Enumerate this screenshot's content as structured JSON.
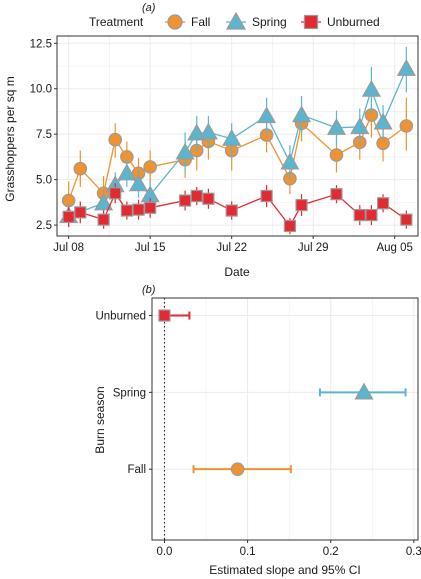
{
  "colors": {
    "fall": "#f0922f",
    "spring": "#5ab6cf",
    "unburned": "#e32a32",
    "marker_edge": "#9a9a9a",
    "grid": "#ebebeb",
    "zero_line": "#222222"
  },
  "legend": {
    "title": "Treatment",
    "items": [
      {
        "label": "Fall",
        "icon": "circle-icon"
      },
      {
        "label": "Spring",
        "icon": "triangle-icon"
      },
      {
        "label": "Unburned",
        "icon": "square-icon"
      }
    ]
  },
  "chart_data": [
    {
      "panel_label": "(a)",
      "type": "line",
      "xlabel": "Date",
      "ylabel": "Grasshoppers per sq m",
      "x_ticks": [
        "Jul 08",
        "Jul 15",
        "Jul 22",
        "Jul 29",
        "Aug 05"
      ],
      "y_ticks": [
        "2.5",
        "5.0",
        "7.5",
        "10.0",
        "12.5"
      ],
      "xlim": [
        "2023-07-07",
        "2023-08-07"
      ],
      "ylim": [
        1.9,
        12.9
      ],
      "grid": true,
      "legend_position": "top",
      "series": [
        {
          "name": "Fall",
          "marker": "circle",
          "points": [
            {
              "x": "2023-07-08",
              "y": 3.85,
              "lo": 2.9,
              "hi": 4.9
            },
            {
              "x": "2023-07-09",
              "y": 5.6,
              "lo": 4.6,
              "hi": 6.6
            },
            {
              "x": "2023-07-11",
              "y": 4.25,
              "lo": 3.4,
              "hi": 5.2
            },
            {
              "x": "2023-07-12",
              "y": 7.2,
              "lo": 6.2,
              "hi": 8.1
            },
            {
              "x": "2023-07-13",
              "y": 6.25,
              "lo": 5.4,
              "hi": 7.1
            },
            {
              "x": "2023-07-14",
              "y": 5.35,
              "lo": 4.5,
              "hi": 6.2
            },
            {
              "x": "2023-07-15",
              "y": 5.7,
              "lo": 4.8,
              "hi": 6.6
            },
            {
              "x": "2023-07-18",
              "y": 6.1,
              "lo": 5.1,
              "hi": 7.1
            },
            {
              "x": "2023-07-19",
              "y": 6.6,
              "lo": 5.5,
              "hi": 7.7
            },
            {
              "x": "2023-07-20",
              "y": 7.1,
              "lo": 6.1,
              "hi": 8.1
            },
            {
              "x": "2023-07-22",
              "y": 6.6,
              "lo": 5.5,
              "hi": 7.7
            },
            {
              "x": "2023-07-25",
              "y": 7.45,
              "lo": 6.5,
              "hi": 8.4
            },
            {
              "x": "2023-07-27",
              "y": 5.05,
              "lo": 4.2,
              "hi": 5.9
            },
            {
              "x": "2023-07-28",
              "y": 8.1,
              "lo": 7.1,
              "hi": 9.1
            },
            {
              "x": "2023-07-31",
              "y": 6.35,
              "lo": 5.4,
              "hi": 7.3
            },
            {
              "x": "2023-08-02",
              "y": 7.05,
              "lo": 6.1,
              "hi": 8.0
            },
            {
              "x": "2023-08-03",
              "y": 8.55,
              "lo": 7.3,
              "hi": 9.7
            },
            {
              "x": "2023-08-04",
              "y": 7.0,
              "lo": 6.0,
              "hi": 8.0
            },
            {
              "x": "2023-08-06",
              "y": 7.95,
              "lo": 6.6,
              "hi": 9.5
            }
          ]
        },
        {
          "name": "Spring",
          "marker": "triangle",
          "points": [
            {
              "x": "2023-07-08",
              "y": 3.0,
              "lo": 2.4,
              "hi": 3.7
            },
            {
              "x": "2023-07-11",
              "y": 3.7,
              "lo": 3.0,
              "hi": 4.4
            },
            {
              "x": "2023-07-12",
              "y": 4.7,
              "lo": 3.9,
              "hi": 5.4
            },
            {
              "x": "2023-07-13",
              "y": 5.35,
              "lo": 4.6,
              "hi": 6.1
            },
            {
              "x": "2023-07-14",
              "y": 4.75,
              "lo": 4.0,
              "hi": 5.5
            },
            {
              "x": "2023-07-15",
              "y": 4.15,
              "lo": 3.4,
              "hi": 4.9
            },
            {
              "x": "2023-07-18",
              "y": 6.5,
              "lo": 5.4,
              "hi": 7.6
            },
            {
              "x": "2023-07-19",
              "y": 7.55,
              "lo": 6.5,
              "hi": 8.5
            },
            {
              "x": "2023-07-20",
              "y": 7.6,
              "lo": 6.7,
              "hi": 8.5
            },
            {
              "x": "2023-07-22",
              "y": 7.25,
              "lo": 6.3,
              "hi": 8.1
            },
            {
              "x": "2023-07-25",
              "y": 8.5,
              "lo": 7.4,
              "hi": 9.5
            },
            {
              "x": "2023-07-27",
              "y": 5.95,
              "lo": 5.0,
              "hi": 6.9
            },
            {
              "x": "2023-07-28",
              "y": 8.55,
              "lo": 7.5,
              "hi": 9.6
            },
            {
              "x": "2023-07-31",
              "y": 7.85,
              "lo": 6.9,
              "hi": 8.8
            },
            {
              "x": "2023-08-02",
              "y": 7.9,
              "lo": 6.9,
              "hi": 8.9
            },
            {
              "x": "2023-08-03",
              "y": 9.95,
              "lo": 8.6,
              "hi": 11.2
            },
            {
              "x": "2023-08-04",
              "y": 8.15,
              "lo": 7.2,
              "hi": 9.1
            },
            {
              "x": "2023-08-06",
              "y": 11.1,
              "lo": 9.8,
              "hi": 12.3
            }
          ]
        },
        {
          "name": "Unburned",
          "marker": "square",
          "points": [
            {
              "x": "2023-07-08",
              "y": 2.95,
              "lo": 2.4,
              "hi": 3.5
            },
            {
              "x": "2023-07-09",
              "y": 3.2,
              "lo": 2.6,
              "hi": 3.8
            },
            {
              "x": "2023-07-11",
              "y": 2.8,
              "lo": 2.3,
              "hi": 3.3
            },
            {
              "x": "2023-07-12",
              "y": 4.25,
              "lo": 3.7,
              "hi": 4.8
            },
            {
              "x": "2023-07-13",
              "y": 3.3,
              "lo": 2.8,
              "hi": 3.8
            },
            {
              "x": "2023-07-14",
              "y": 3.35,
              "lo": 2.8,
              "hi": 3.9
            },
            {
              "x": "2023-07-15",
              "y": 3.45,
              "lo": 2.9,
              "hi": 4.0
            },
            {
              "x": "2023-07-18",
              "y": 3.85,
              "lo": 3.3,
              "hi": 4.4
            },
            {
              "x": "2023-07-19",
              "y": 4.1,
              "lo": 3.6,
              "hi": 4.6
            },
            {
              "x": "2023-07-20",
              "y": 3.95,
              "lo": 3.4,
              "hi": 4.5
            },
            {
              "x": "2023-07-22",
              "y": 3.3,
              "lo": 2.8,
              "hi": 3.8
            },
            {
              "x": "2023-07-25",
              "y": 4.1,
              "lo": 3.5,
              "hi": 4.7
            },
            {
              "x": "2023-07-27",
              "y": 2.45,
              "lo": 2.0,
              "hi": 2.9
            },
            {
              "x": "2023-07-28",
              "y": 3.6,
              "lo": 3.0,
              "hi": 4.2
            },
            {
              "x": "2023-07-31",
              "y": 4.2,
              "lo": 3.7,
              "hi": 4.7
            },
            {
              "x": "2023-08-02",
              "y": 3.05,
              "lo": 2.5,
              "hi": 3.6
            },
            {
              "x": "2023-08-03",
              "y": 3.05,
              "lo": 2.5,
              "hi": 3.6
            },
            {
              "x": "2023-08-04",
              "y": 3.7,
              "lo": 3.2,
              "hi": 4.2
            },
            {
              "x": "2023-08-06",
              "y": 2.8,
              "lo": 2.3,
              "hi": 3.3
            }
          ]
        }
      ]
    },
    {
      "panel_label": "(b)",
      "type": "scatter",
      "xlabel": "Estimated slope and 95% CI",
      "ylabel": "Burn season",
      "categories": [
        "Fall",
        "Spring",
        "Unburned"
      ],
      "x_ticks": [
        "0.0",
        "0.1",
        "0.2",
        "0.3"
      ],
      "xlim": [
        -0.015,
        0.305
      ],
      "grid": true,
      "reference_line_x": 0,
      "estimates": [
        {
          "category": "Unburned",
          "estimate": 0.0,
          "lo": 0.0,
          "hi": 0.03
        },
        {
          "category": "Spring",
          "estimate": 0.24,
          "lo": 0.187,
          "hi": 0.29
        },
        {
          "category": "Fall",
          "estimate": 0.088,
          "lo": 0.035,
          "hi": 0.152
        }
      ]
    }
  ]
}
